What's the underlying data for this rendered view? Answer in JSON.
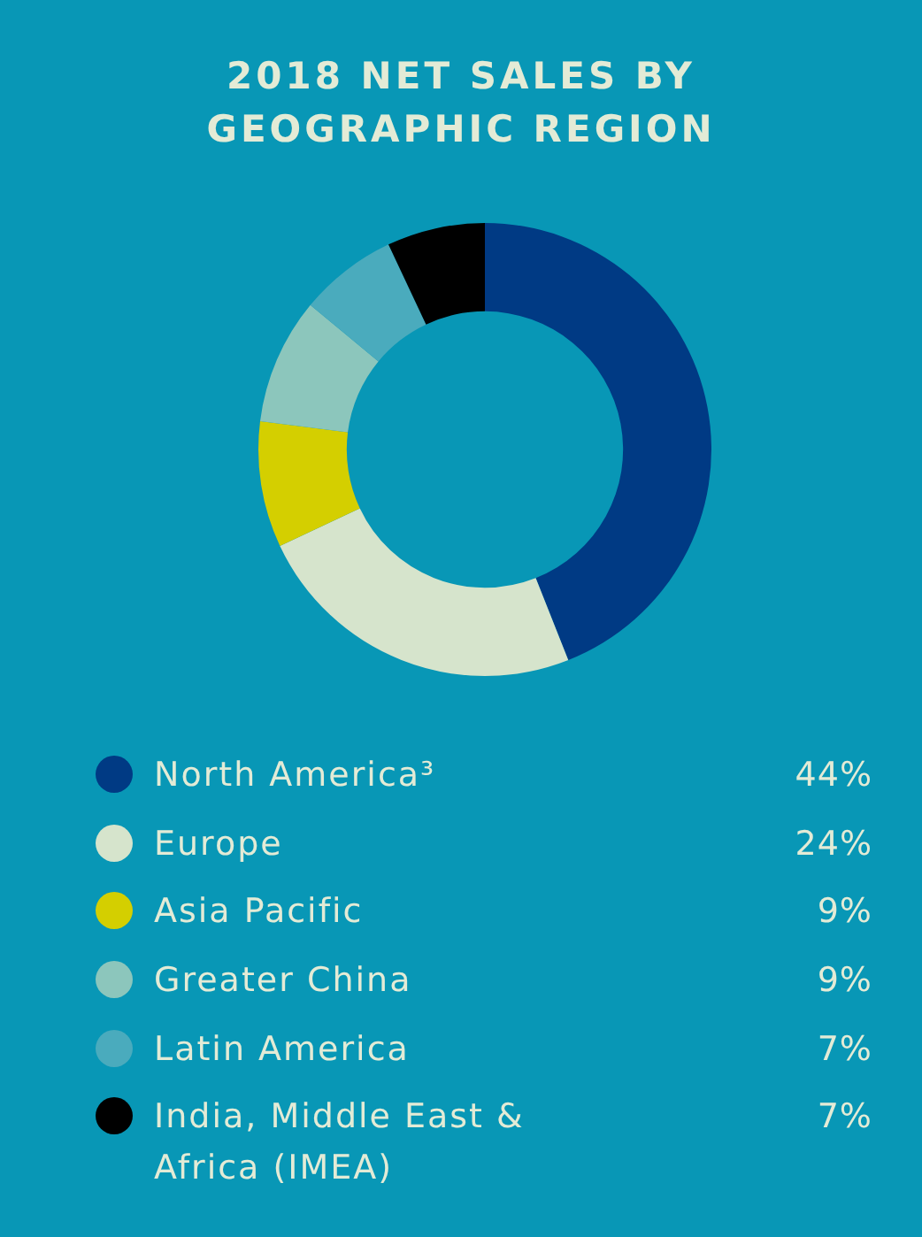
{
  "chart_data": {
    "type": "donut",
    "title": "2018 NET SALES BY GEOGRAPHIC REGION",
    "categories": [
      "North America³",
      "Europe",
      "Asia Pacific",
      "Greater China",
      "Latin America",
      "India, Middle East & Africa (IMEA)"
    ],
    "values": [
      44,
      24,
      9,
      9,
      7,
      7
    ],
    "colors": [
      "#003a84",
      "#d6e4cc",
      "#d4cf00",
      "#8cc6bc",
      "#4aabbd",
      "#000000"
    ],
    "value_labels": [
      "44%",
      "24%",
      "9%",
      "9%",
      "7%",
      "7%"
    ],
    "legend": "bottom"
  }
}
